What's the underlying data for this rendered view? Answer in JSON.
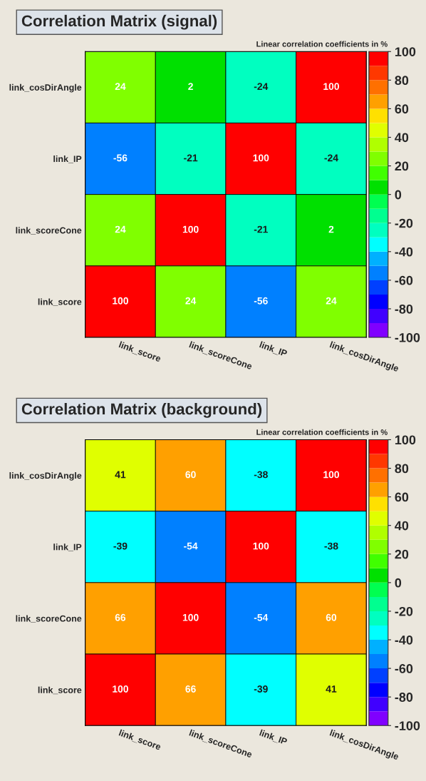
{
  "chart_data": [
    {
      "type": "heatmap",
      "title": "Correlation Matrix (signal)",
      "subtitle": "Linear correlation coefficients in %",
      "categories": [
        "link_score",
        "link_scoreCone",
        "link_IP",
        "link_cosDirAngle"
      ],
      "y_categories": [
        "link_cosDirAngle",
        "link_IP",
        "link_scoreCone",
        "link_score"
      ],
      "cells": [
        [
          24,
          2,
          -24,
          100
        ],
        [
          -56,
          -21,
          100,
          -24
        ],
        [
          24,
          100,
          -21,
          2
        ],
        [
          100,
          24,
          -56,
          24
        ]
      ],
      "data_labels": true,
      "clim": [
        -100,
        100
      ],
      "cticks": [
        -100,
        -80,
        -60,
        -40,
        -20,
        0,
        20,
        40,
        60,
        80,
        100
      ]
    },
    {
      "type": "heatmap",
      "title": "Correlation Matrix (background)",
      "subtitle": "Linear correlation coefficients in %",
      "categories": [
        "link_score",
        "link_scoreCone",
        "link_IP",
        "link_cosDirAngle"
      ],
      "y_categories": [
        "link_cosDirAngle",
        "link_IP",
        "link_scoreCone",
        "link_score"
      ],
      "cells": [
        [
          41,
          60,
          -38,
          100
        ],
        [
          -39,
          -54,
          100,
          -38
        ],
        [
          66,
          100,
          -54,
          60
        ],
        [
          100,
          66,
          -39,
          41
        ]
      ],
      "data_labels": true,
      "clim": [
        -100,
        100
      ],
      "cticks": [
        -100,
        -80,
        -60,
        -40,
        -20,
        0,
        20,
        40,
        60,
        80,
        100
      ]
    }
  ]
}
